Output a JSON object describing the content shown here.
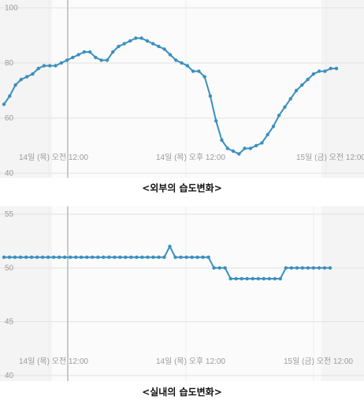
{
  "chart_data": [
    {
      "type": "line",
      "title": "<외부의 습도변화>",
      "ylim": [
        40,
        100
      ],
      "yticks": [
        40,
        60,
        80,
        100
      ],
      "xticks": [
        "14일 (목) 오전 12:00",
        "14일 (목) 오후 12:00",
        "15일 (금) 오전 12:00"
      ],
      "grid": true,
      "color": "#3a8fbe",
      "values": [
        65,
        68,
        72,
        74,
        75,
        76,
        78,
        79,
        79,
        79,
        80,
        81,
        82,
        83,
        84,
        84,
        82,
        81,
        81,
        84,
        86,
        87,
        88,
        89,
        89,
        88,
        87,
        86,
        85,
        83,
        81,
        80,
        79,
        77,
        77,
        75,
        68,
        59,
        52,
        49,
        48,
        47,
        49,
        49,
        50,
        51,
        54,
        57,
        61,
        64,
        67,
        70,
        72,
        74,
        76,
        77,
        77,
        78,
        78
      ]
    },
    {
      "type": "line",
      "title": "<실내의 습도변화>",
      "ylim": [
        40,
        55
      ],
      "yticks": [
        40,
        45,
        50,
        55
      ],
      "xticks": [
        "14일 (목) 오전 12:00",
        "14일 (목) 오후 12:00",
        "15일 (금) 오전 12:00"
      ],
      "grid": true,
      "color": "#3a8fbe",
      "values": [
        51,
        51,
        51,
        51,
        51,
        51,
        51,
        51,
        51,
        51,
        51,
        51,
        51,
        51,
        51,
        51,
        51,
        51,
        51,
        51,
        51,
        51,
        51,
        51,
        51,
        51,
        51,
        51,
        51,
        51,
        52,
        51,
        51,
        51,
        51,
        51,
        51,
        51,
        50,
        50,
        50,
        49,
        49,
        49,
        49,
        49,
        49,
        49,
        49,
        49,
        49,
        50,
        50,
        50,
        50,
        50,
        50,
        50,
        50,
        50
      ]
    }
  ]
}
